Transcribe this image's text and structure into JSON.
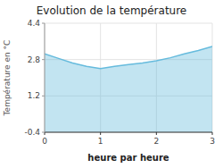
{
  "chart_data": {
    "type": "area",
    "title": "Evolution de la température",
    "xlabel": "heure par heure",
    "ylabel": "Température en °C",
    "x": [
      0,
      0.25,
      0.5,
      0.75,
      1.0,
      1.25,
      1.5,
      1.75,
      2.0,
      2.25,
      2.5,
      2.75,
      3.0
    ],
    "values": [
      3.05,
      2.85,
      2.65,
      2.5,
      2.4,
      2.5,
      2.58,
      2.65,
      2.75,
      2.88,
      3.05,
      3.2,
      3.38
    ],
    "color": "#66bbdd",
    "xlim": [
      0,
      3
    ],
    "ylim": [
      -0.4,
      4.4
    ],
    "xticks": [
      0,
      1,
      2,
      3
    ],
    "yticks": [
      -0.4,
      1.2,
      2.8,
      4.4
    ],
    "grid": true
  }
}
